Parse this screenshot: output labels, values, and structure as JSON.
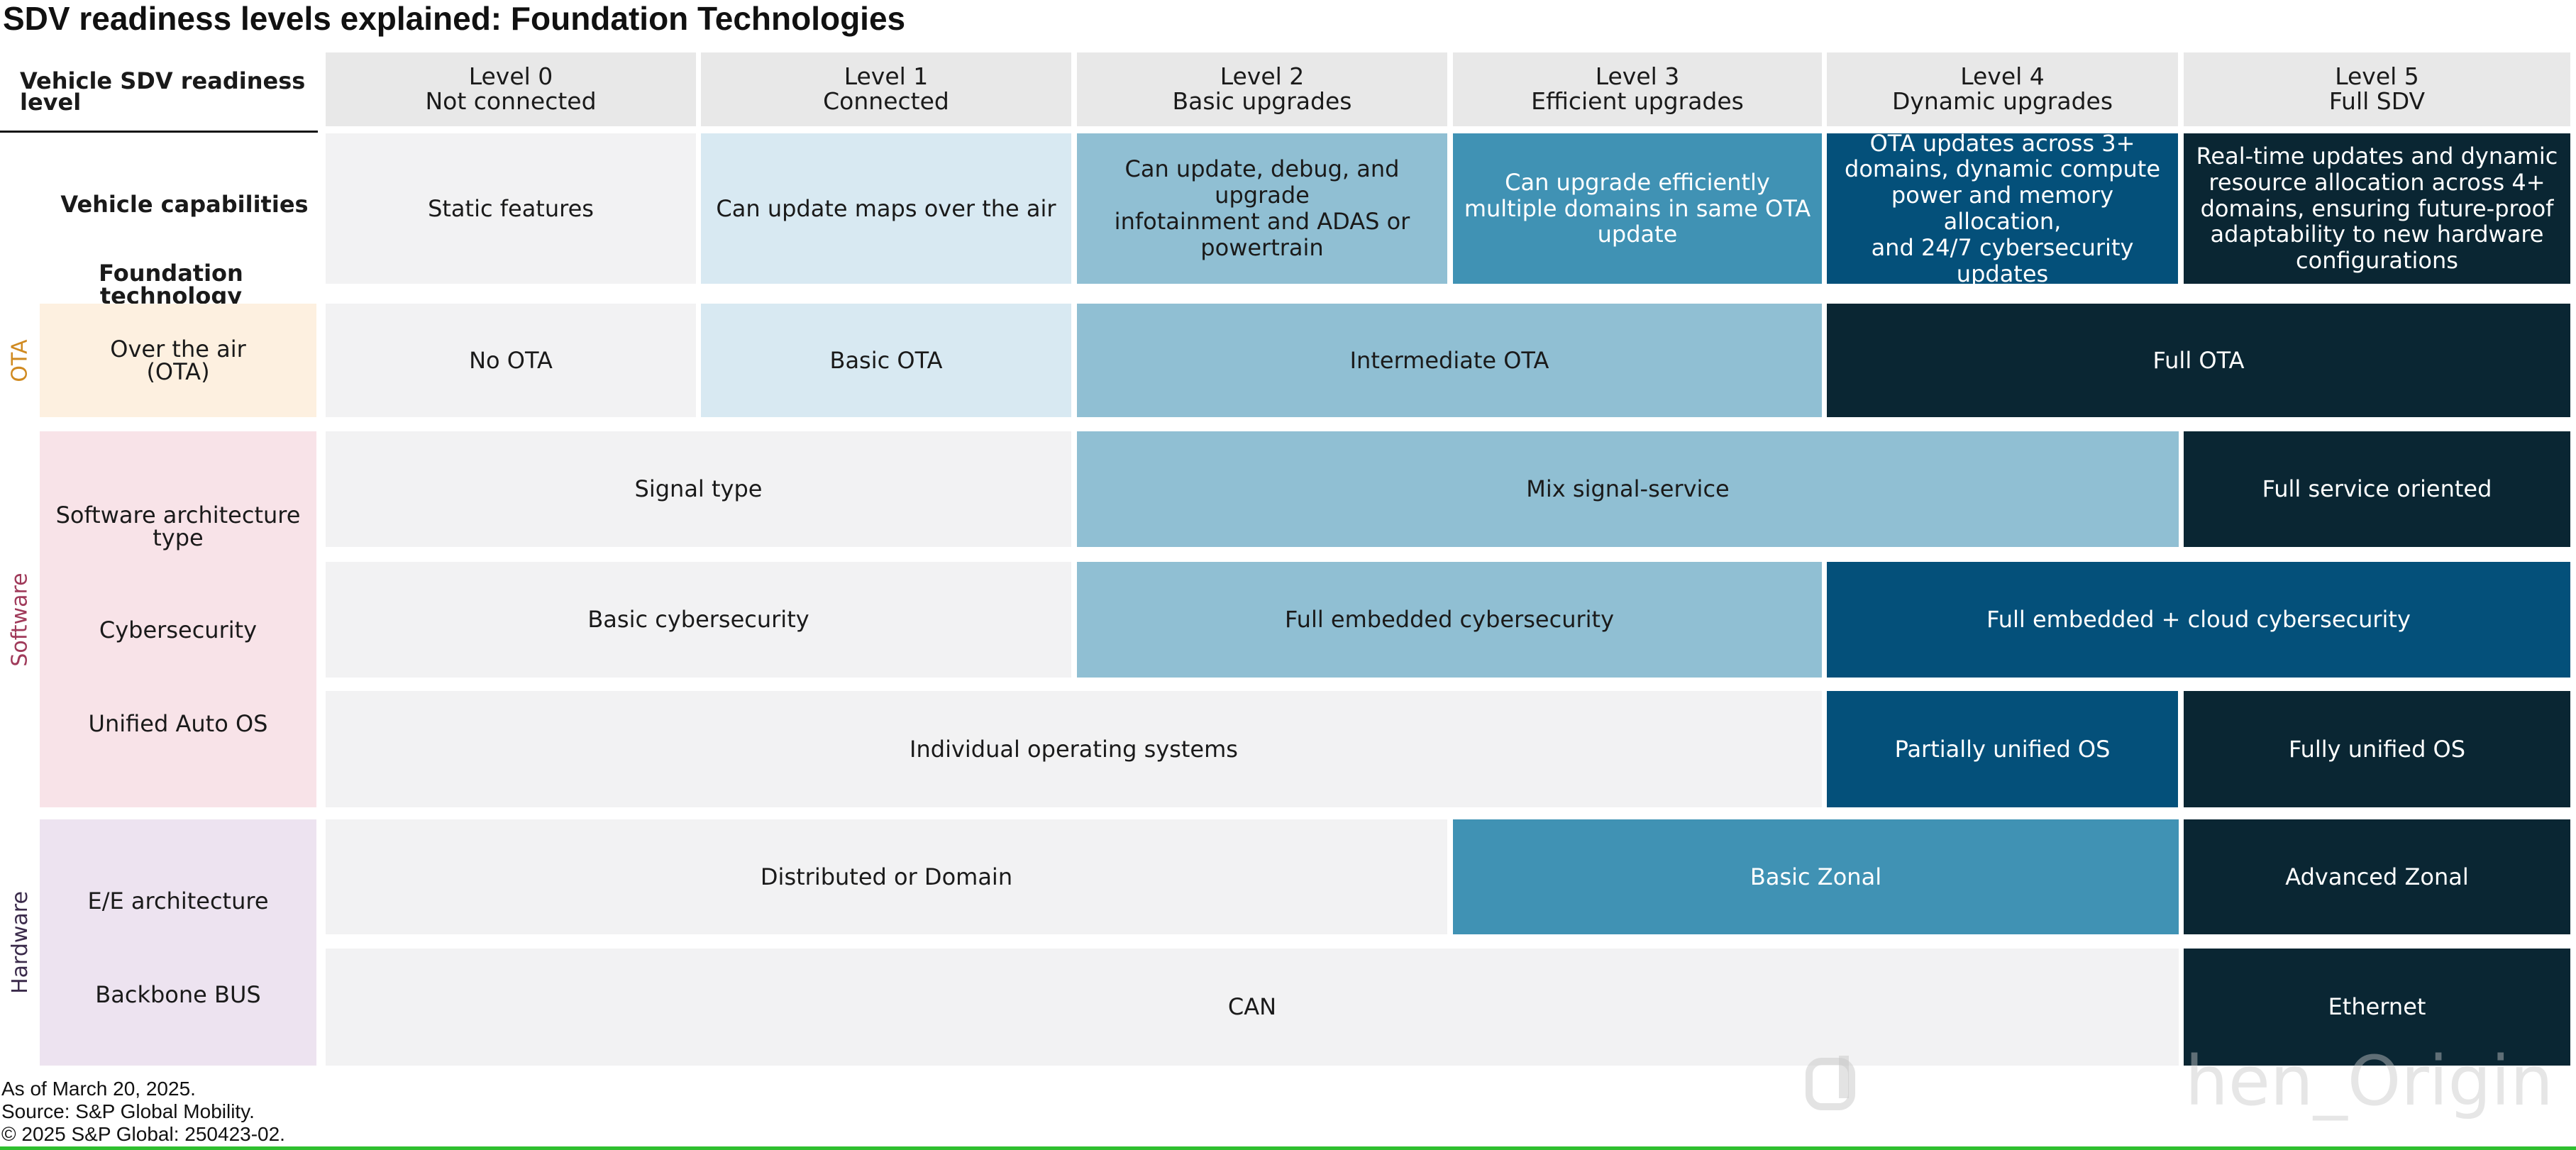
{
  "title": "SDV readiness levels explained: Foundation Technologies",
  "header": {
    "corner_label": "Vehicle SDV readiness\nlevel",
    "levels": [
      {
        "name": "Level 0",
        "desc": "Not connected"
      },
      {
        "name": "Level 1",
        "desc": "Connected"
      },
      {
        "name": "Level 2",
        "desc": "Basic upgrades"
      },
      {
        "name": "Level 3",
        "desc": "Efficient upgrades"
      },
      {
        "name": "Level 4",
        "desc": "Dynamic upgrades"
      },
      {
        "name": "Level 5",
        "desc": "Full SDV"
      }
    ]
  },
  "capabilities": {
    "label": "Vehicle capabilities",
    "cells": [
      "Static features",
      "Can update maps over the air",
      "Can update, debug, and upgrade\ninfotainment and ADAS or\npowertrain",
      "Can upgrade efficiently\nmultiple domains in same OTA\nupdate",
      "OTA updates across 3+\ndomains, dynamic compute\npower and memory allocation,\nand 24/7 cybersecurity\nupdates",
      "Real-time updates and dynamic\nresource allocation across 4+\ndomains, ensuring future-proof\nadaptability to new hardware\nconfigurations"
    ]
  },
  "foundation_label": "Foundation technology",
  "groups": {
    "ota": {
      "label": "OTA",
      "color": "#fdf0e0",
      "text_color": "#d08a20"
    },
    "software": {
      "label": "Software",
      "color": "#f8e3e8",
      "text_color": "#a03a5a"
    },
    "hardware": {
      "label": "Hardware",
      "color": "#ede3f0",
      "text_color": "#3a2a4a"
    }
  },
  "rows": {
    "ota": {
      "label": "Over the air\n(OTA)",
      "cells": [
        "No OTA",
        "Basic OTA",
        "Intermediate OTA",
        "Full OTA"
      ]
    },
    "sw_arch": {
      "label": "Software architecture\ntype",
      "cells": [
        "Signal type",
        "Mix signal-service",
        "Full service oriented"
      ]
    },
    "cyber": {
      "label": "Cybersecurity",
      "cells": [
        "Basic cybersecurity",
        "Full embedded cybersecurity",
        "Full embedded + cloud cybersecurity"
      ]
    },
    "os": {
      "label": "Unified Auto OS",
      "cells": [
        "Individual operating systems",
        "Partially unified OS",
        "Fully unified OS"
      ]
    },
    "ee": {
      "label": "E/E architecture",
      "cells": [
        "Distributed or Domain",
        "Basic Zonal",
        "Advanced Zonal"
      ]
    },
    "bus": {
      "label": "Backbone BUS",
      "cells": [
        "CAN",
        "Ethernet"
      ]
    }
  },
  "footer": [
    "As of March 20, 2025.",
    "Source: S&P Global Mobility.",
    "© 2025 S&P Global: 250423-02."
  ],
  "watermark": "hen_Origin",
  "colors": {
    "level0": "#f2f2f3",
    "level1": "#d8e9f2",
    "level2": "#90bfd3",
    "level3": "#4092b4",
    "level4": "#04507a",
    "level5": "#0a2633"
  }
}
